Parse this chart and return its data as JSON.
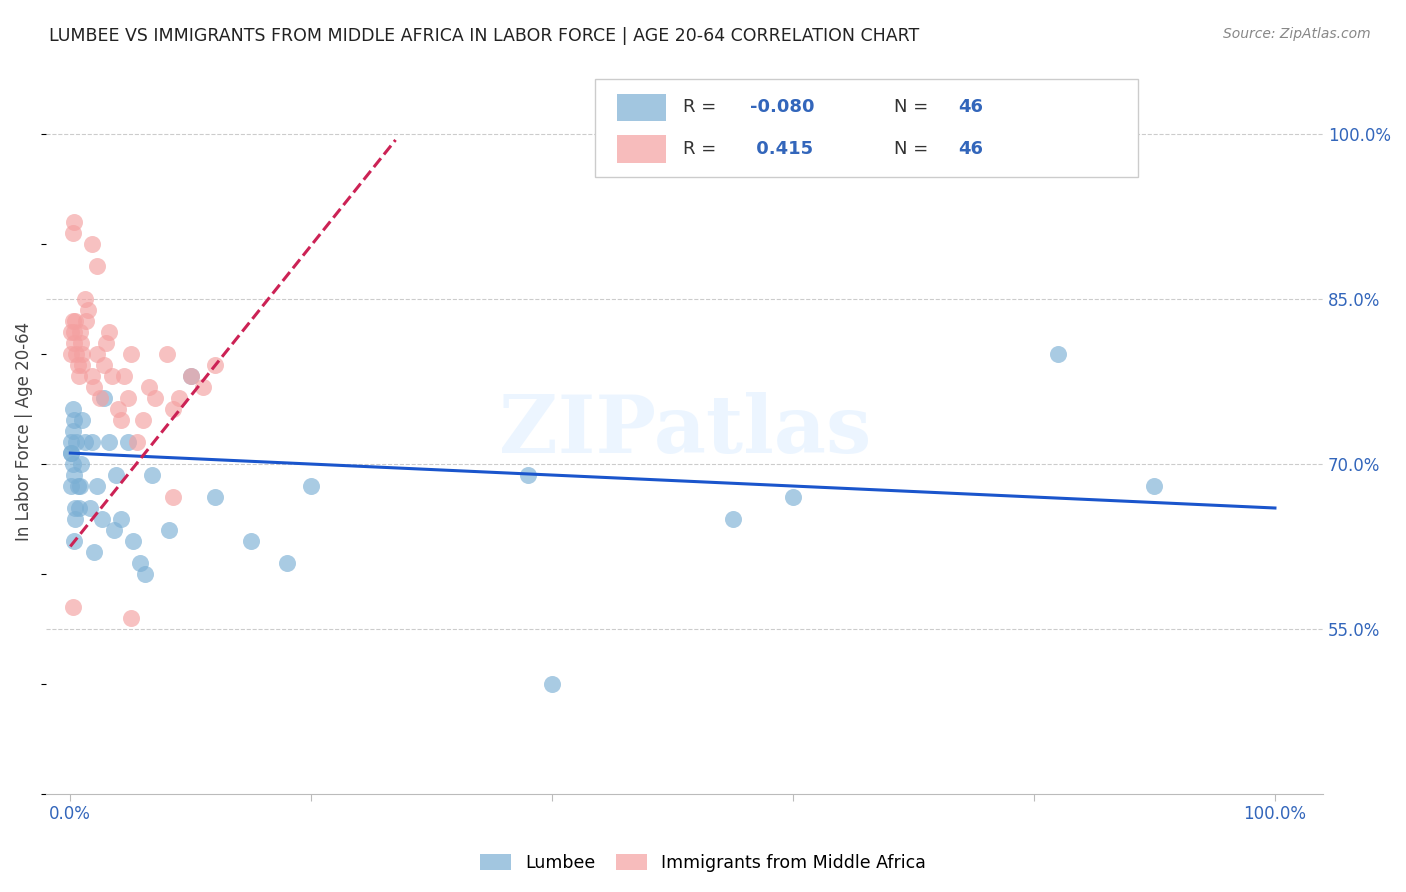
{
  "title": "LUMBEE VS IMMIGRANTS FROM MIDDLE AFRICA IN LABOR FORCE | AGE 20-64 CORRELATION CHART",
  "source": "Source: ZipAtlas.com",
  "ylabel": "In Labor Force | Age 20-64",
  "watermark": "ZIPatlas",
  "blue_color": "#7BAFD4",
  "pink_color": "#F4A0A0",
  "line_blue": "#1A55CC",
  "line_pink": "#CC2255",
  "legend_label_blue": "Lumbee",
  "legend_label_pink": "Immigrants from Middle Africa",
  "y_ticks": [
    0.55,
    0.7,
    0.85,
    1.0
  ],
  "y_tick_labels": [
    "55.0%",
    "70.0%",
    "85.0%",
    "100.0%"
  ],
  "x_ticks": [
    0.0,
    0.2,
    0.4,
    0.6,
    0.8,
    1.0
  ],
  "x_tick_labels": [
    "0.0%",
    "",
    "",
    "",
    "",
    "100.0%"
  ],
  "xlim": [
    -0.02,
    1.04
  ],
  "ylim": [
    0.4,
    1.06
  ],
  "lumbee_x": [
    0.001,
    0.002,
    0.001,
    0.003,
    0.002,
    0.001,
    0.002,
    0.003,
    0.004,
    0.001,
    0.005,
    0.006,
    0.007,
    0.004,
    0.003,
    0.01,
    0.012,
    0.009,
    0.008,
    0.018,
    0.022,
    0.016,
    0.028,
    0.032,
    0.038,
    0.026,
    0.02,
    0.042,
    0.036,
    0.048,
    0.052,
    0.058,
    0.062,
    0.068,
    0.082,
    0.1,
    0.12,
    0.15,
    0.18,
    0.2,
    0.38,
    0.4,
    0.55,
    0.6,
    0.82,
    0.9
  ],
  "lumbee_y": [
    0.72,
    0.73,
    0.71,
    0.69,
    0.7,
    0.68,
    0.75,
    0.74,
    0.66,
    0.71,
    0.72,
    0.68,
    0.66,
    0.65,
    0.63,
    0.74,
    0.72,
    0.7,
    0.68,
    0.72,
    0.68,
    0.66,
    0.76,
    0.72,
    0.69,
    0.65,
    0.62,
    0.65,
    0.64,
    0.72,
    0.63,
    0.61,
    0.6,
    0.69,
    0.64,
    0.78,
    0.67,
    0.63,
    0.61,
    0.68,
    0.69,
    0.5,
    0.65,
    0.67,
    0.8,
    0.68
  ],
  "immig_x": [
    0.001,
    0.001,
    0.002,
    0.002,
    0.003,
    0.003,
    0.004,
    0.005,
    0.006,
    0.007,
    0.008,
    0.009,
    0.01,
    0.01,
    0.012,
    0.013,
    0.015,
    0.018,
    0.02,
    0.022,
    0.025,
    0.028,
    0.03,
    0.032,
    0.035,
    0.04,
    0.042,
    0.045,
    0.048,
    0.05,
    0.055,
    0.06,
    0.065,
    0.07,
    0.08,
    0.085,
    0.09,
    0.1,
    0.11,
    0.12,
    0.002,
    0.003,
    0.018,
    0.022,
    0.05,
    0.085
  ],
  "immig_y": [
    0.82,
    0.8,
    0.57,
    0.83,
    0.82,
    0.81,
    0.83,
    0.8,
    0.79,
    0.78,
    0.82,
    0.81,
    0.79,
    0.8,
    0.85,
    0.83,
    0.84,
    0.78,
    0.77,
    0.8,
    0.76,
    0.79,
    0.81,
    0.82,
    0.78,
    0.75,
    0.74,
    0.78,
    0.76,
    0.8,
    0.72,
    0.74,
    0.77,
    0.76,
    0.8,
    0.75,
    0.76,
    0.78,
    0.77,
    0.79,
    0.91,
    0.92,
    0.9,
    0.88,
    0.56,
    0.67
  ],
  "blue_line_x": [
    0.0,
    1.0
  ],
  "blue_line_y": [
    0.71,
    0.66
  ],
  "pink_line_x": [
    0.0,
    0.27
  ],
  "pink_line_y": [
    0.625,
    0.995
  ]
}
